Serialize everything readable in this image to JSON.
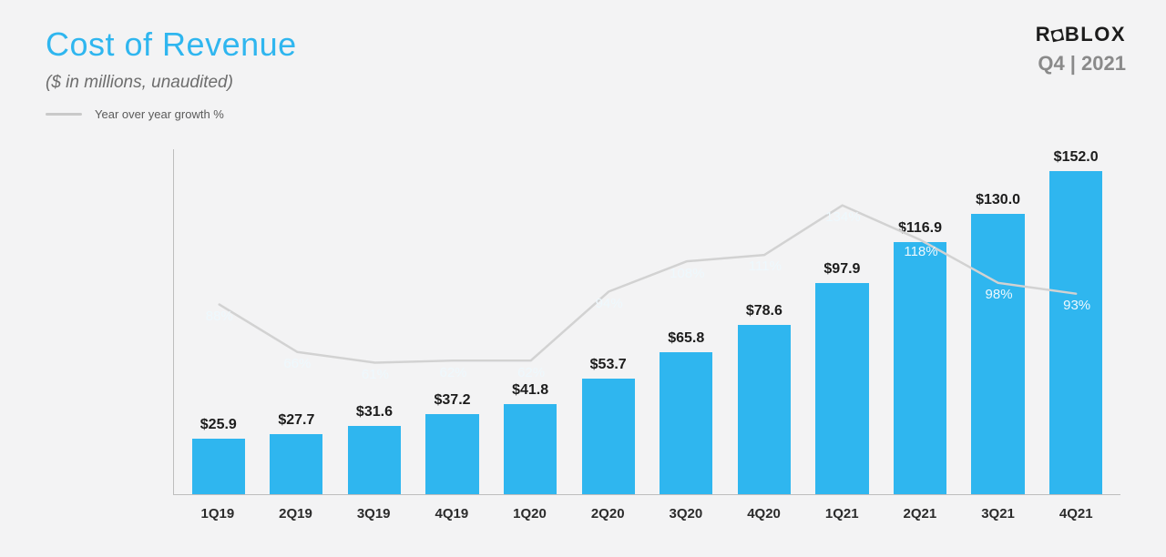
{
  "slide": {
    "background_color": "#f3f3f4",
    "title": "Cost of Revenue",
    "title_color": "#2fb6ef",
    "subtitle": "($ in millions, unaudited)",
    "subtitle_color": "#6d6d6d",
    "legend_label": "Year over year growth %",
    "legend_color": "#c9c9c9",
    "legend_text_color": "#5a5a5a"
  },
  "brand": {
    "logo_text": "ROBLOX",
    "logo_color": "#1c1c1c",
    "period": "Q4 | 2021",
    "period_color": "#8a8a8a"
  },
  "chart": {
    "type": "bar",
    "y_max": 160,
    "bar_color": "#2fb6ef",
    "value_label_color": "#1c1c1c",
    "value_prefix": "$",
    "growth_suffix": "%",
    "growth_label_color": "#eef8fd",
    "axis_color": "#bdbdbd",
    "xlabel_color": "#2b2b2b",
    "line_color": "#d2d2d2",
    "line_width": 2.5,
    "growth_line_scale_max": 160,
    "points": [
      {
        "x": "1Q19",
        "value": 25.9,
        "value_text": "25.9",
        "growth": 88
      },
      {
        "x": "2Q19",
        "value": 27.7,
        "value_text": "27.7",
        "growth": 66
      },
      {
        "x": "3Q19",
        "value": 31.6,
        "value_text": "31.6",
        "growth": 61
      },
      {
        "x": "4Q19",
        "value": 37.2,
        "value_text": "37.2",
        "growth": 62
      },
      {
        "x": "1Q20",
        "value": 41.8,
        "value_text": "41.8",
        "growth": 62
      },
      {
        "x": "2Q20",
        "value": 53.7,
        "value_text": "53.7",
        "growth": 94
      },
      {
        "x": "3Q20",
        "value": 65.8,
        "value_text": "65.8",
        "growth": 108
      },
      {
        "x": "4Q20",
        "value": 78.6,
        "value_text": "78.6",
        "growth": 111
      },
      {
        "x": "1Q21",
        "value": 97.9,
        "value_text": "97.9",
        "growth": 134
      },
      {
        "x": "2Q21",
        "value": 116.9,
        "value_text": "116.9",
        "growth": 118
      },
      {
        "x": "3Q21",
        "value": 130.0,
        "value_text": "130.0",
        "growth": 98
      },
      {
        "x": "4Q21",
        "value": 152.0,
        "value_text": "152.0",
        "growth": 93
      }
    ]
  }
}
